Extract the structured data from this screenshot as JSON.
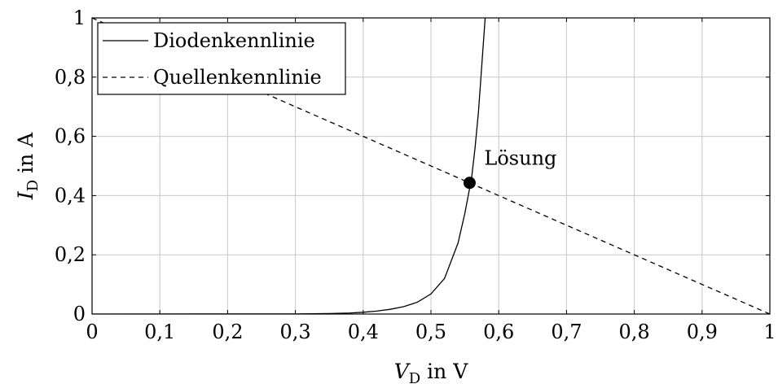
{
  "chart_data": {
    "type": "line",
    "xlabel_var": "V",
    "xlabel_sub": "D",
    "xlabel_rest": " in V",
    "ylabel_var": "I",
    "ylabel_sub": "D",
    "ylabel_rest": " in A",
    "xlim": [
      0,
      1
    ],
    "ylim": [
      0,
      1
    ],
    "grid": true,
    "legend_position": "top-left",
    "x_ticks": [
      0,
      0.1,
      0.2,
      0.3,
      0.4,
      0.5,
      0.6,
      0.7,
      0.8,
      0.9,
      1
    ],
    "x_tick_labels": [
      "0",
      "0,1",
      "0,2",
      "0,3",
      "0,4",
      "0,5",
      "0,6",
      "0,7",
      "0,8",
      "0,9",
      "1"
    ],
    "y_ticks": [
      0,
      0.2,
      0.4,
      0.6,
      0.8,
      1
    ],
    "y_tick_labels": [
      "0",
      "0,2",
      "0,4",
      "0,6",
      "0,8",
      "1"
    ],
    "series": [
      {
        "name": "Diodenkennlinie",
        "style": "solid",
        "x": [
          0,
          0.3,
          0.35,
          0.38,
          0.4,
          0.42,
          0.44,
          0.46,
          0.48,
          0.5,
          0.52,
          0.54,
          0.55,
          0.56,
          0.565,
          0.57,
          0.575,
          0.58
        ],
        "y": [
          0,
          0.0003,
          0.0015,
          0.0035,
          0.006,
          0.01,
          0.016,
          0.025,
          0.04,
          0.068,
          0.12,
          0.24,
          0.34,
          0.46,
          0.56,
          0.68,
          0.84,
          1.0
        ]
      },
      {
        "name": "Quellenkennlinie",
        "style": "dashed",
        "x": [
          0,
          1
        ],
        "y": [
          1,
          0
        ]
      }
    ],
    "annotations": [
      {
        "text": "Lösung",
        "x": 0.557,
        "y": 0.443
      }
    ]
  }
}
